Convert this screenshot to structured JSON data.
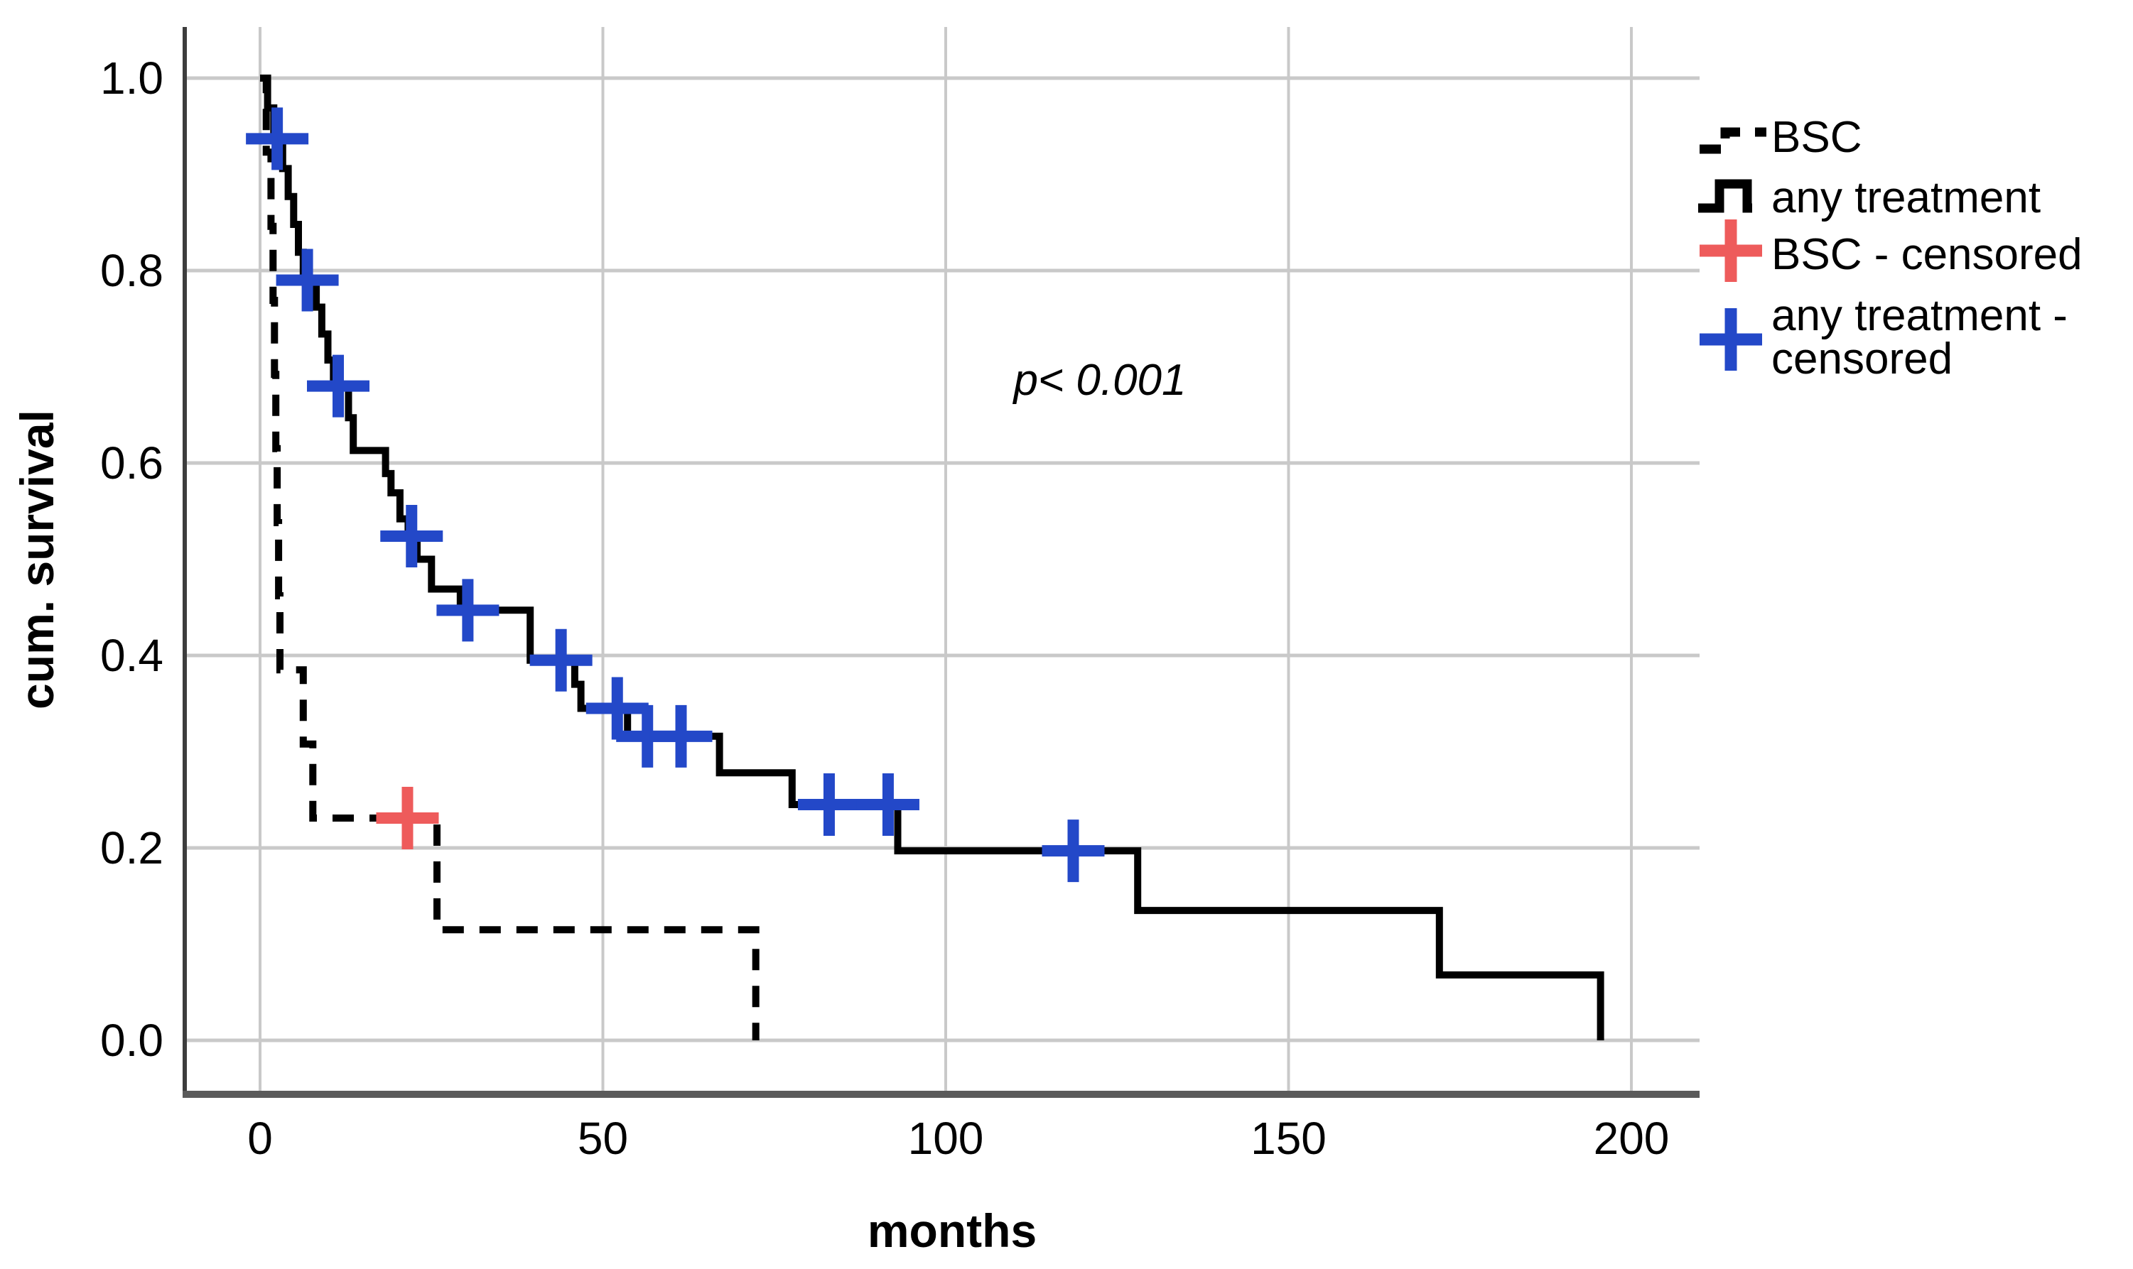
{
  "figure": {
    "p_annotation": "p< 0.001"
  },
  "chart_data": {
    "type": "line",
    "subtype": "kaplan-meier-step",
    "title": "",
    "xlabel": "months",
    "ylabel": "cum. survival",
    "xlim": [
      0,
      210
    ],
    "ylim": [
      0.0,
      1.0
    ],
    "grid": true,
    "legend_position": "top-right",
    "annotation": "p< 0.001",
    "xticks": [
      {
        "value": 0,
        "label": "0"
      },
      {
        "value": 50,
        "label": "50"
      },
      {
        "value": 100,
        "label": "100"
      },
      {
        "value": 150,
        "label": "150"
      },
      {
        "value": 200,
        "label": "200"
      }
    ],
    "yticks": [
      {
        "value": 1.0,
        "label": "1.0"
      },
      {
        "value": 0.8,
        "label": "0.8"
      },
      {
        "value": 0.6,
        "label": "0.6"
      },
      {
        "value": 0.4,
        "label": "0.4"
      },
      {
        "value": 0.2,
        "label": "0.2"
      },
      {
        "value": 0.0,
        "label": "0.0"
      }
    ],
    "colors": {
      "bsc_line": "#000000",
      "any_treatment_line": "#000000",
      "bsc_censor": "#ee5b5b",
      "any_treatment_censor": "#2348c8",
      "gridline": "#c9c9c9",
      "axis_border_left": "#3d3d3d",
      "axis_border_bottom": "#5a5a5a"
    },
    "series": [
      {
        "name": "BSC",
        "style": "dashed",
        "color": "#000000",
        "steps": [
          [
            0,
            1.0
          ],
          [
            0.9,
            0.923
          ],
          [
            1.6,
            0.846
          ],
          [
            1.9,
            0.769
          ],
          [
            2.1,
            0.692
          ],
          [
            2.3,
            0.615
          ],
          [
            2.5,
            0.538
          ],
          [
            2.7,
            0.462
          ],
          [
            2.9,
            0.385
          ],
          [
            6.3,
            0.308
          ],
          [
            7.7,
            0.231
          ],
          [
            25.8,
            0.115
          ],
          [
            72.3,
            0.0
          ]
        ],
        "censored_points": [
          [
            21.5,
            0.231
          ]
        ],
        "censor_color": "#ee5b5b"
      },
      {
        "name": "any treatment",
        "style": "solid",
        "color": "#000000",
        "steps": [
          [
            0,
            1.0
          ],
          [
            1.1,
            0.969
          ],
          [
            2.0,
            0.937
          ],
          [
            3.3,
            0.906
          ],
          [
            4.1,
            0.877
          ],
          [
            4.9,
            0.848
          ],
          [
            5.6,
            0.819
          ],
          [
            6.3,
            0.79
          ],
          [
            8.2,
            0.762
          ],
          [
            9.0,
            0.734
          ],
          [
            9.9,
            0.707
          ],
          [
            10.7,
            0.68
          ],
          [
            12.9,
            0.647
          ],
          [
            13.6,
            0.613
          ],
          [
            18.3,
            0.589
          ],
          [
            19.1,
            0.569
          ],
          [
            20.4,
            0.542
          ],
          [
            21.6,
            0.524
          ],
          [
            22.9,
            0.5
          ],
          [
            25.0,
            0.469
          ],
          [
            29.2,
            0.447
          ],
          [
            39.4,
            0.395
          ],
          [
            45.9,
            0.37
          ],
          [
            46.8,
            0.345
          ],
          [
            53.6,
            0.316
          ],
          [
            67.0,
            0.278
          ],
          [
            77.6,
            0.245
          ],
          [
            93.0,
            0.197
          ],
          [
            128.0,
            0.135
          ],
          [
            172.0,
            0.068
          ],
          [
            195.5,
            0.0
          ]
        ],
        "censored_points": [
          [
            2.5,
            0.937
          ],
          [
            6.9,
            0.79
          ],
          [
            11.4,
            0.68
          ],
          [
            22.1,
            0.524
          ],
          [
            30.3,
            0.447
          ],
          [
            43.9,
            0.395
          ],
          [
            52.1,
            0.345
          ],
          [
            56.5,
            0.316
          ],
          [
            61.4,
            0.316
          ],
          [
            83.0,
            0.245
          ],
          [
            91.6,
            0.245
          ],
          [
            118.6,
            0.197
          ]
        ],
        "censor_color": "#2348c8"
      }
    ],
    "legend": [
      {
        "label": "BSC",
        "swatch": "dashed-step-line"
      },
      {
        "label": "any treatment",
        "swatch": "solid-step-line"
      },
      {
        "label": "BSC - censored",
        "swatch": "plus",
        "color": "#ee5b5b"
      },
      {
        "label": "any treatment - censored",
        "swatch": "plus",
        "color": "#2348c8",
        "lines": [
          "any treatment -",
          "censored"
        ]
      }
    ]
  }
}
